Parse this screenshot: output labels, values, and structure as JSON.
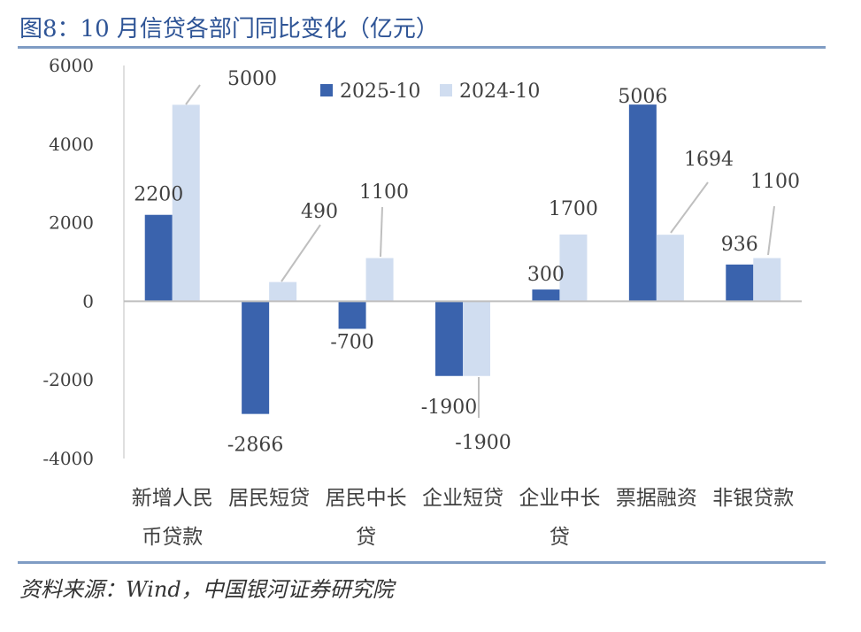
{
  "title": "图8：10 月信贷各部门同比变化（亿元）",
  "source": "资料来源：Wind，中国银河证券研究院",
  "colors": {
    "series_2025": "#3a63ad",
    "series_2024": "#d0ddf0",
    "title": "#2e5496",
    "rule": "#7f9cc4"
  },
  "chart_data": {
    "type": "bar",
    "categories": [
      [
        "新增人民",
        "币贷款"
      ],
      [
        "居民短贷"
      ],
      [
        "居民中长",
        "贷"
      ],
      [
        "企业短贷"
      ],
      [
        "企业中长",
        "贷"
      ],
      [
        "票据融资"
      ],
      [
        "非银贷款"
      ]
    ],
    "series": [
      {
        "name": "2025-10",
        "values": [
          2200,
          -2866,
          -700,
          -1900,
          300,
          5006,
          936
        ]
      },
      {
        "name": "2024-10",
        "values": [
          5000,
          490,
          1100,
          -1900,
          1700,
          1694,
          1100
        ]
      }
    ],
    "ylim": [
      -4000,
      6000
    ],
    "yticks": [
      -4000,
      -2000,
      0,
      2000,
      4000,
      6000
    ],
    "legend": "top-center",
    "grid": false
  }
}
